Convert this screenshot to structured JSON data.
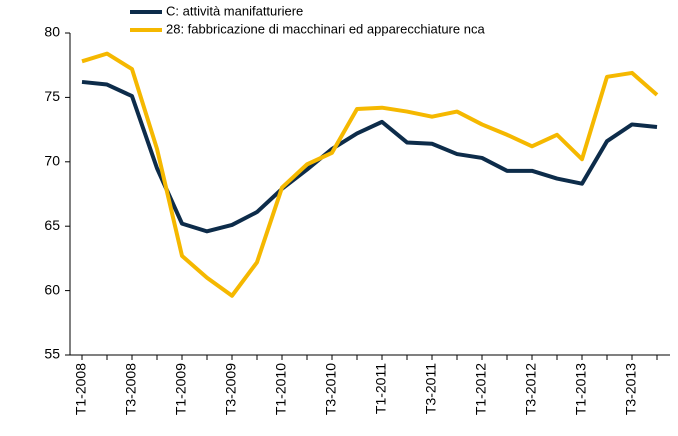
{
  "chart_data": {
    "type": "line",
    "categories": [
      "T1-2008",
      null,
      "T3-2008",
      null,
      "T1-2009",
      null,
      "T3-2009",
      null,
      "T1-2010",
      null,
      "T3-2010",
      null,
      "T1-2011",
      null,
      "T3-2011",
      null,
      "T1-2012",
      null,
      "T3-2012",
      null,
      "T1-2013",
      null,
      "T3-2013",
      null
    ],
    "series": [
      {
        "name": "C: attività manifatturiere",
        "color": "#0d2c4a",
        "values": [
          76.2,
          76.0,
          75.1,
          69.5,
          65.2,
          64.6,
          65.1,
          66.1,
          67.9,
          69.4,
          71.0,
          72.2,
          73.1,
          71.5,
          71.4,
          70.6,
          70.3,
          69.3,
          69.3,
          68.7,
          68.3,
          71.6,
          72.9,
          72.7
        ]
      },
      {
        "name": "28: fabbricazione di macchinari ed apparecchiature nca",
        "color": "#f5b800",
        "values": [
          77.8,
          78.4,
          77.2,
          71.0,
          62.7,
          61.0,
          59.6,
          62.2,
          68.0,
          69.8,
          70.7,
          74.1,
          74.2,
          73.9,
          73.5,
          73.9,
          72.9,
          72.1,
          71.2,
          72.1,
          70.2,
          76.6,
          76.9,
          75.2
        ]
      }
    ],
    "ylim": [
      55,
      80
    ],
    "yticks": [
      55,
      60,
      65,
      70,
      75,
      80
    ]
  }
}
